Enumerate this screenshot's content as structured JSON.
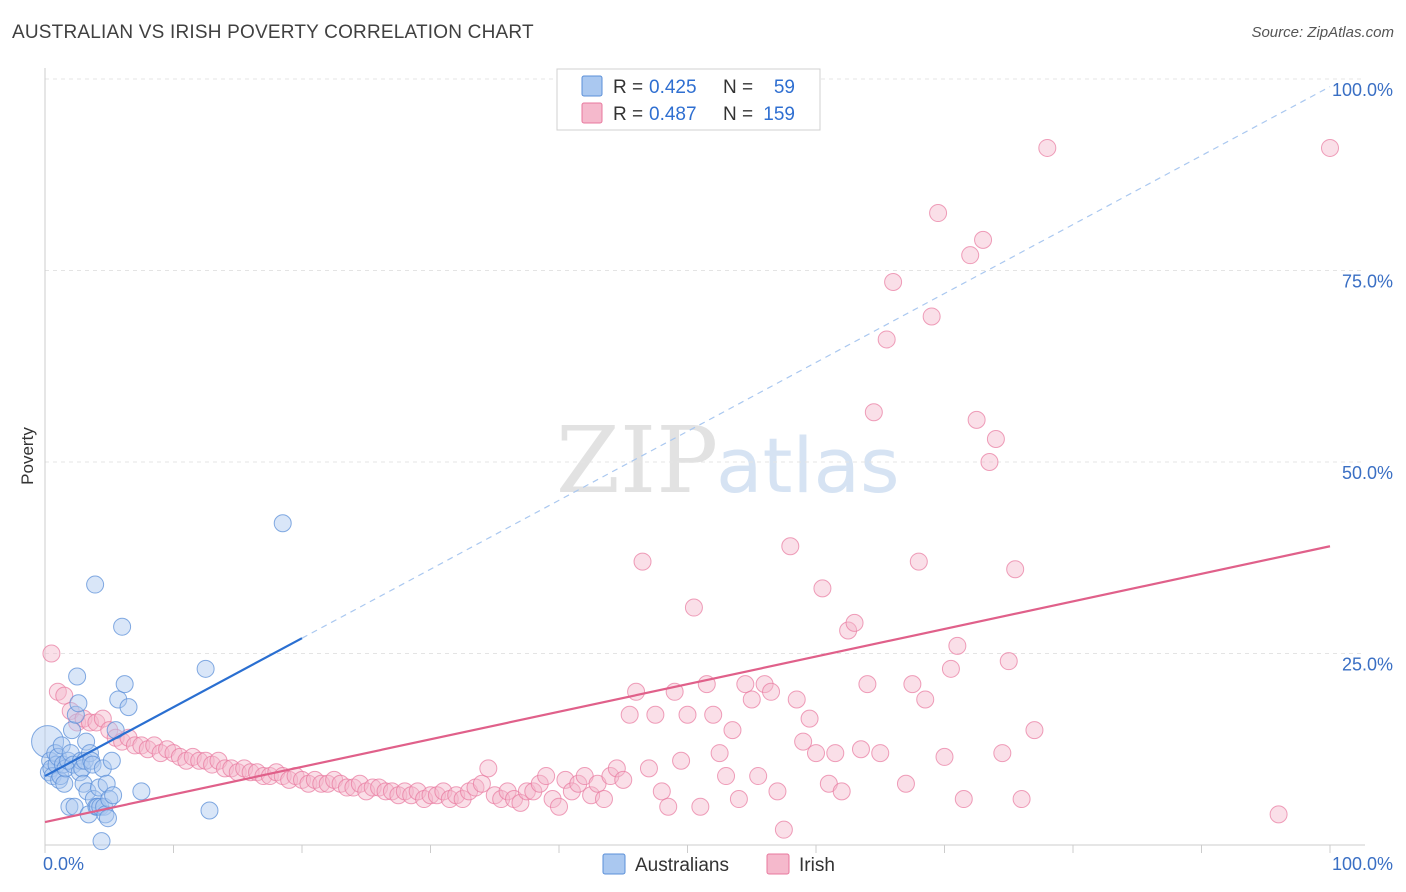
{
  "header": {
    "title": "AUSTRALIAN VS IRISH POVERTY CORRELATION CHART",
    "source": "Source: ZipAtlas.com"
  },
  "watermark": {
    "zip": "ZIP",
    "atlas": "atlas"
  },
  "colors": {
    "australians": "#5b8fd8",
    "australians_fill": "#aac8f0",
    "australians_line": "#2a6fd1",
    "irish": "#e8789e",
    "irish_fill": "#f5b9cc",
    "irish_line": "#e0608a",
    "tick_text": "#3a6fc4",
    "grid": "#e4e4e4"
  },
  "legend": {
    "rows": [
      {
        "r_label": "R = ",
        "r_value": "0.425",
        "n_label": "N = ",
        "n_value": "59"
      },
      {
        "r_label": "R = ",
        "r_value": "0.487",
        "n_label": "N = ",
        "n_value": "159"
      }
    ]
  },
  "chart_data": {
    "type": "scatter",
    "title": "AUSTRALIAN VS IRISH POVERTY CORRELATION CHART",
    "xlabel": "",
    "ylabel": "Poverty",
    "xlim": [
      0,
      100
    ],
    "ylim": [
      0,
      100
    ],
    "x_tick_labels": [
      "0.0%",
      "100.0%"
    ],
    "y_ticks": [
      25,
      50,
      75,
      100
    ],
    "y_tick_labels": [
      "25.0%",
      "50.0%",
      "75.0%",
      "100.0%"
    ],
    "grid": true,
    "legend_position": "bottom-center",
    "series": [
      {
        "name": "Australians",
        "trend": {
          "x": [
            0,
            20
          ],
          "y": [
            9,
            27
          ],
          "dashed_extension_to": [
            100,
            99
          ]
        },
        "points": [
          [
            0.2,
            13.5
          ],
          [
            0.3,
            9.5
          ],
          [
            0.4,
            11
          ],
          [
            0.5,
            10
          ],
          [
            0.6,
            9
          ],
          [
            0.8,
            12
          ],
          [
            0.9,
            10.5
          ],
          [
            1.0,
            11.5
          ],
          [
            1.1,
            8.5
          ],
          [
            1.2,
            9
          ],
          [
            1.3,
            13
          ],
          [
            1.4,
            10.5
          ],
          [
            1.5,
            8
          ],
          [
            1.6,
            10
          ],
          [
            1.8,
            11
          ],
          [
            1.9,
            5
          ],
          [
            2.0,
            12
          ],
          [
            2.1,
            15
          ],
          [
            2.2,
            10.5
          ],
          [
            2.3,
            5
          ],
          [
            2.4,
            17
          ],
          [
            2.5,
            22
          ],
          [
            2.6,
            18.5
          ],
          [
            2.7,
            9.5
          ],
          [
            2.8,
            11
          ],
          [
            2.9,
            10
          ],
          [
            3.0,
            8
          ],
          [
            3.1,
            11
          ],
          [
            3.2,
            13.5
          ],
          [
            3.3,
            7
          ],
          [
            3.4,
            4
          ],
          [
            3.5,
            12
          ],
          [
            3.6,
            11
          ],
          [
            3.7,
            10.5
          ],
          [
            3.8,
            6
          ],
          [
            3.9,
            34
          ],
          [
            4.0,
            5
          ],
          [
            4.1,
            5
          ],
          [
            4.2,
            7.5
          ],
          [
            4.3,
            5
          ],
          [
            4.4,
            0.5
          ],
          [
            4.5,
            10
          ],
          [
            4.6,
            5
          ],
          [
            4.7,
            4
          ],
          [
            4.8,
            8
          ],
          [
            4.9,
            3.5
          ],
          [
            5.0,
            6
          ],
          [
            5.2,
            11
          ],
          [
            5.3,
            6.5
          ],
          [
            5.5,
            15
          ],
          [
            5.7,
            19
          ],
          [
            6.0,
            28.5
          ],
          [
            6.2,
            21
          ],
          [
            6.5,
            18
          ],
          [
            7.5,
            7
          ],
          [
            12.5,
            23
          ],
          [
            12.8,
            4.5
          ],
          [
            18.5,
            42
          ]
        ]
      },
      {
        "name": "Irish",
        "trend": {
          "x": [
            0,
            100
          ],
          "y": [
            3,
            39
          ]
        },
        "points": [
          [
            0.5,
            25
          ],
          [
            1,
            20
          ],
          [
            1.5,
            19.5
          ],
          [
            2,
            17.5
          ],
          [
            2.5,
            16
          ],
          [
            3,
            16.5
          ],
          [
            3.5,
            16
          ],
          [
            4,
            16
          ],
          [
            4.5,
            16.5
          ],
          [
            5,
            15
          ],
          [
            5.5,
            14
          ],
          [
            6,
            13.5
          ],
          [
            6.5,
            14
          ],
          [
            7,
            13
          ],
          [
            7.5,
            13
          ],
          [
            8,
            12.5
          ],
          [
            8.5,
            13
          ],
          [
            9,
            12
          ],
          [
            9.5,
            12.5
          ],
          [
            10,
            12
          ],
          [
            10.5,
            11.5
          ],
          [
            11,
            11
          ],
          [
            11.5,
            11.5
          ],
          [
            12,
            11
          ],
          [
            12.5,
            11
          ],
          [
            13,
            10.5
          ],
          [
            13.5,
            11
          ],
          [
            14,
            10
          ],
          [
            14.5,
            10
          ],
          [
            15,
            9.5
          ],
          [
            15.5,
            10
          ],
          [
            16,
            9.5
          ],
          [
            16.5,
            9.5
          ],
          [
            17,
            9
          ],
          [
            17.5,
            9
          ],
          [
            18,
            9.5
          ],
          [
            18.5,
            9
          ],
          [
            19,
            8.5
          ],
          [
            19.5,
            9
          ],
          [
            20,
            8.5
          ],
          [
            20.5,
            8
          ],
          [
            21,
            8.5
          ],
          [
            21.5,
            8
          ],
          [
            22,
            8
          ],
          [
            22.5,
            8.5
          ],
          [
            23,
            8
          ],
          [
            23.5,
            7.5
          ],
          [
            24,
            7.5
          ],
          [
            24.5,
            8
          ],
          [
            25,
            7
          ],
          [
            25.5,
            7.5
          ],
          [
            26,
            7.5
          ],
          [
            26.5,
            7
          ],
          [
            27,
            7
          ],
          [
            27.5,
            6.5
          ],
          [
            28,
            7
          ],
          [
            28.5,
            6.5
          ],
          [
            29,
            7
          ],
          [
            29.5,
            6
          ],
          [
            30,
            6.5
          ],
          [
            30.5,
            6.5
          ],
          [
            31,
            7
          ],
          [
            31.5,
            6
          ],
          [
            32,
            6.5
          ],
          [
            32.5,
            6
          ],
          [
            33,
            7
          ],
          [
            33.5,
            7.5
          ],
          [
            34,
            8
          ],
          [
            34.5,
            10
          ],
          [
            35,
            6.5
          ],
          [
            35.5,
            6
          ],
          [
            36,
            7
          ],
          [
            36.5,
            6
          ],
          [
            37,
            5.5
          ],
          [
            37.5,
            7
          ],
          [
            38,
            7
          ],
          [
            38.5,
            8
          ],
          [
            39,
            9
          ],
          [
            39.5,
            6
          ],
          [
            40,
            5
          ],
          [
            40.5,
            8.5
          ],
          [
            41,
            7
          ],
          [
            41.5,
            8
          ],
          [
            42,
            9
          ],
          [
            42.5,
            6.5
          ],
          [
            43,
            8
          ],
          [
            43.5,
            6
          ],
          [
            44,
            9
          ],
          [
            44.5,
            10
          ],
          [
            45,
            8.5
          ],
          [
            45.5,
            17
          ],
          [
            46,
            20
          ],
          [
            46.5,
            37
          ],
          [
            47,
            10
          ],
          [
            47.5,
            17
          ],
          [
            48,
            7
          ],
          [
            48.5,
            5
          ],
          [
            49,
            20
          ],
          [
            49.5,
            11
          ],
          [
            50,
            17
          ],
          [
            50.5,
            31
          ],
          [
            51,
            5
          ],
          [
            51.5,
            21
          ],
          [
            52,
            17
          ],
          [
            52.5,
            12
          ],
          [
            53,
            9
          ],
          [
            53.5,
            15
          ],
          [
            54,
            6
          ],
          [
            54.5,
            21
          ],
          [
            55,
            19
          ],
          [
            55.5,
            9
          ],
          [
            56,
            21
          ],
          [
            56.5,
            20
          ],
          [
            57,
            7
          ],
          [
            57.5,
            2
          ],
          [
            58,
            39
          ],
          [
            58.5,
            19
          ],
          [
            59,
            13.5
          ],
          [
            59.5,
            16.5
          ],
          [
            60,
            12
          ],
          [
            60.5,
            33.5
          ],
          [
            61,
            8
          ],
          [
            61.5,
            12
          ],
          [
            62,
            7
          ],
          [
            62.5,
            28
          ],
          [
            63,
            29
          ],
          [
            63.5,
            12.5
          ],
          [
            64,
            21
          ],
          [
            64.5,
            56.5
          ],
          [
            65,
            12
          ],
          [
            65.5,
            66
          ],
          [
            66,
            73.5
          ],
          [
            67,
            8
          ],
          [
            67.5,
            21
          ],
          [
            68,
            37
          ],
          [
            68.5,
            19
          ],
          [
            69,
            69
          ],
          [
            69.5,
            82.5
          ],
          [
            70,
            11.5
          ],
          [
            70.5,
            23
          ],
          [
            71,
            26
          ],
          [
            71.5,
            6
          ],
          [
            72,
            77
          ],
          [
            72.5,
            55.5
          ],
          [
            73,
            79
          ],
          [
            73.5,
            50
          ],
          [
            74,
            53
          ],
          [
            74.5,
            12
          ],
          [
            75,
            24
          ],
          [
            75.5,
            36
          ],
          [
            76,
            6
          ],
          [
            77,
            15
          ],
          [
            78,
            91
          ],
          [
            96,
            4
          ],
          [
            100,
            91
          ]
        ]
      }
    ]
  },
  "bottom_legend": {
    "items": [
      {
        "label": "Australians"
      },
      {
        "label": "Irish"
      }
    ]
  }
}
